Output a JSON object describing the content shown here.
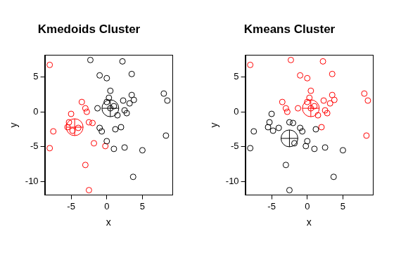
{
  "chart_data": [
    {
      "type": "scatter",
      "title": "Kmedoids Cluster",
      "x_label": "x",
      "y_label": "y",
      "xlim": [
        -8.7,
        9.2
      ],
      "ylim": [
        -11.9,
        8.1
      ],
      "xticks": [
        -5,
        0,
        5
      ],
      "yticks": [
        -10,
        -5,
        0,
        5
      ],
      "grid": false,
      "series": [
        {
          "color": "#000000",
          "marker": "circle",
          "x": [
            -1,
            -1,
            -0.7,
            0,
            -2.3,
            0,
            0.5,
            0.3,
            0,
            -1.3,
            0.5,
            1,
            1.5,
            1.2,
            2,
            1,
            2.5,
            5,
            3.7,
            2.2,
            3.5,
            3.5,
            3.2,
            3.8,
            2.5,
            2.3,
            8,
            8.5,
            8.3,
            2.8
          ],
          "y": [
            5.2,
            -2.3,
            -2.8,
            -4.2,
            7.4,
            4.8,
            3,
            2,
            1.4,
            0.5,
            0.5,
            0.8,
            -0.5,
            -2.5,
            -2.2,
            -5.3,
            -5.1,
            -5.5,
            -9.3,
            7.2,
            5.4,
            2.4,
            1.2,
            1.7,
            0.2,
            1.6,
            2.6,
            1.6,
            -3.4,
            -0.2
          ]
        },
        {
          "color": "#ff0000",
          "marker": "circle",
          "x": [
            -8,
            -7.5,
            -8,
            -5.3,
            -5,
            -5.5,
            -4.8,
            -4,
            -3.5,
            -3,
            -2.8,
            -2.5,
            -2,
            -1.8,
            -3,
            -2.5,
            -0.2
          ],
          "y": [
            6.7,
            -2.8,
            -5.2,
            -1.5,
            -0.3,
            -2.2,
            -2.7,
            -2.3,
            1.4,
            0.5,
            0,
            -1.5,
            -1.6,
            -4.5,
            -7.6,
            -11.2,
            -4.9
          ]
        }
      ],
      "centers": {
        "marker": "circle_cross",
        "x": [
          0.5,
          -4.5
        ],
        "y": [
          0.5,
          -2.2
        ],
        "colors": [
          "#000000",
          "#ff0000"
        ]
      }
    },
    {
      "type": "scatter",
      "title": "Kmeans Cluster",
      "x_label": "x",
      "y_label": "y",
      "xlim": [
        -8.7,
        9.2
      ],
      "ylim": [
        -11.9,
        8.1
      ],
      "xticks": [
        -5,
        0,
        5
      ],
      "yticks": [
        -10,
        -5,
        0,
        5
      ],
      "grid": false,
      "series": [
        {
          "color": "#000000",
          "marker": "circle",
          "x": [
            -7.5,
            -8,
            -5.3,
            -5,
            -5.5,
            -4.8,
            -4,
            -2.5,
            -2,
            -1.8,
            -3,
            -2.5,
            -0.2,
            -1,
            -0.7,
            0,
            1.2,
            1,
            2.5,
            5,
            3.7
          ],
          "y": [
            -2.8,
            -5.2,
            -1.5,
            -0.3,
            -2.2,
            -2.7,
            -2.3,
            -1.5,
            -1.6,
            -4.5,
            -7.6,
            -11.2,
            -4.9,
            -2.3,
            -2.8,
            -4.2,
            -2.5,
            -5.3,
            -5.1,
            -5.5,
            -9.3
          ]
        },
        {
          "color": "#ff0000",
          "marker": "circle",
          "x": [
            -8,
            -3.5,
            -3,
            -2.8,
            -1,
            -2.3,
            0,
            0.5,
            0.3,
            0,
            -1.3,
            0.5,
            1,
            1.5,
            2,
            2.2,
            3.5,
            3.5,
            3.2,
            3.8,
            2.5,
            2.3,
            8,
            8.5,
            8.3,
            2.8
          ],
          "y": [
            6.7,
            1.4,
            0.5,
            0,
            5.2,
            7.4,
            4.8,
            3,
            2,
            1.4,
            0.5,
            0.5,
            0.8,
            -0.5,
            -2.2,
            7.2,
            5.4,
            2.4,
            1.2,
            1.7,
            0.2,
            1.6,
            2.6,
            1.6,
            -3.4,
            -0.2
          ]
        }
      ],
      "centers": {
        "marker": "circle_cross",
        "x": [
          -2.5,
          0.5
        ],
        "y": [
          -3.8,
          0.5
        ],
        "colors": [
          "#000000",
          "#ff0000"
        ]
      }
    }
  ]
}
